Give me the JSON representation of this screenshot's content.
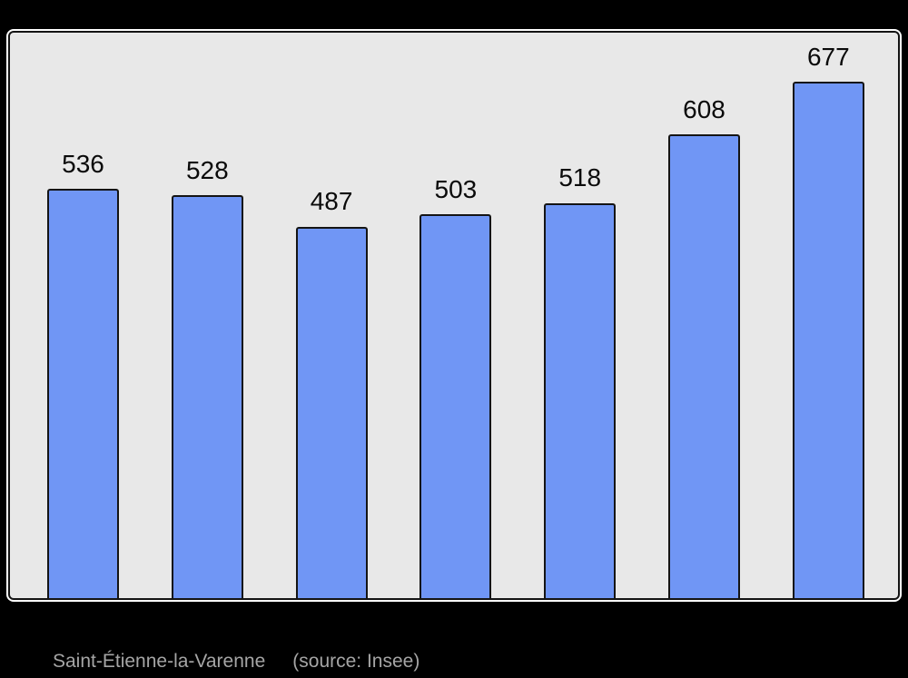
{
  "background_color": "#000000",
  "panel": {
    "bg_color": "#e8e8e8",
    "border_color": "#141414",
    "outline_color": "#ffffff"
  },
  "caption": {
    "title": "Saint-Étienne-la-Varenne",
    "source": "(source: Insee)",
    "color": "#a5a5a5"
  },
  "chart_data": {
    "type": "bar",
    "title": "",
    "xlabel": "",
    "ylabel": "",
    "values": [
      536,
      528,
      487,
      503,
      518,
      608,
      677
    ],
    "data_labels": [
      "536",
      "528",
      "487",
      "503",
      "518",
      "608",
      "677"
    ],
    "ylim": [
      0,
      741
    ],
    "grid": false,
    "legend": false,
    "x_axis_tick_labels": [],
    "bar_color": "#7096f5",
    "bar_border_color": "#141414",
    "value_label_color": "#0a0a0a"
  }
}
